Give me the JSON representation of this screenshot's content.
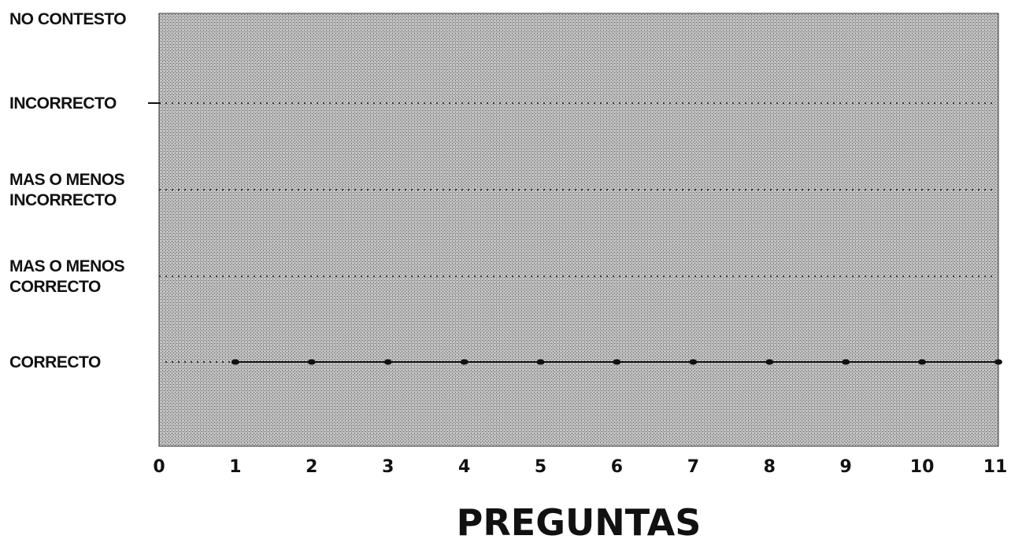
{
  "chart_data": {
    "type": "line",
    "title": "",
    "xlabel": "PREGUNTAS",
    "ylabel": "",
    "x_ticks": [
      "0",
      "1",
      "2",
      "3",
      "4",
      "5",
      "6",
      "7",
      "8",
      "9",
      "10",
      "11"
    ],
    "xlim": [
      0,
      11
    ],
    "y_categories": [
      [
        "CORRECTO"
      ],
      [
        "MAS O MENOS",
        "CORRECTO"
      ],
      [
        "MAS O MENOS",
        "INCORRECTO"
      ],
      [
        "INCORRECTO"
      ],
      [
        "NO CONTESTO"
      ]
    ],
    "grid": "horizontal dotted",
    "series": [
      {
        "x": [
          1,
          2,
          3,
          4,
          5,
          6,
          7,
          8,
          9,
          10,
          11
        ],
        "y": [
          "CORRECTO",
          "CORRECTO",
          "CORRECTO",
          "CORRECTO",
          "CORRECTO",
          "CORRECTO",
          "CORRECTO",
          "CORRECTO",
          "CORRECTO",
          "CORRECTO",
          "CORRECTO"
        ]
      }
    ],
    "colors": {
      "plot_background": "#b9b9b9",
      "line": "#111111",
      "gridline": "#333333"
    }
  }
}
